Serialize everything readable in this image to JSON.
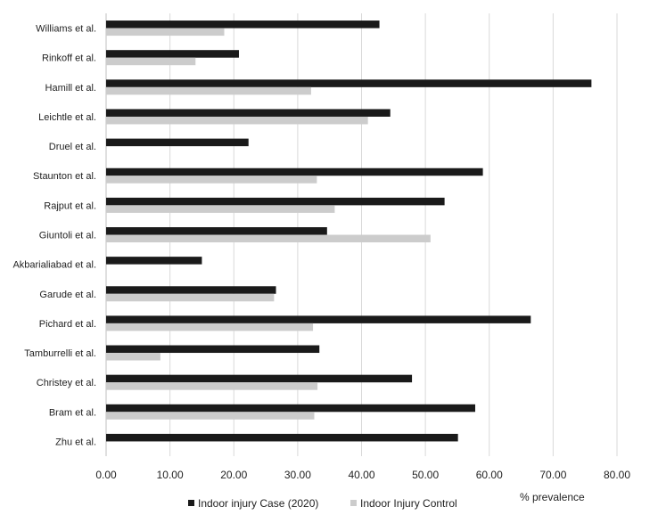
{
  "chart_data": {
    "type": "bar",
    "orientation": "horizontal",
    "title": "",
    "xlabel": "% prevalence",
    "ylabel": "",
    "xlim": [
      0,
      80
    ],
    "xticks": [
      0,
      10,
      20,
      30,
      40,
      50,
      60,
      70,
      80
    ],
    "xtick_labels": [
      "0.00",
      "10.00",
      "20.00",
      "30.00",
      "40.00",
      "50.00",
      "60.00",
      "70.00",
      "80.00"
    ],
    "grid": "vertical",
    "legend_position": "bottom",
    "categories": [
      "Williams et al.",
      "Rinkoff et al.",
      "Hamill et al.",
      "Leichtle et al.",
      "Druel et al.",
      "Staunton et al.",
      "Rajput et al.",
      "Giuntoli et al.",
      "Akbarialiabad et al.",
      "Garude et al.",
      "Pichard et al.",
      "Tamburrelli et al.",
      "Christey et al.",
      "Bram et al.",
      "Zhu et al."
    ],
    "series": [
      {
        "name": "Indoor injury Case (2020)",
        "color": "#1a1a1a",
        "values": [
          42.8,
          20.8,
          76.0,
          44.5,
          22.3,
          59.0,
          53.0,
          34.6,
          15.0,
          26.6,
          66.5,
          33.4,
          47.9,
          57.8,
          55.1
        ]
      },
      {
        "name": "Indoor Injury Control",
        "color": "#cccccc",
        "values": [
          18.5,
          14.0,
          32.1,
          41.0,
          null,
          33.0,
          35.8,
          50.8,
          null,
          26.3,
          32.4,
          8.5,
          33.1,
          32.6,
          null
        ]
      }
    ]
  }
}
